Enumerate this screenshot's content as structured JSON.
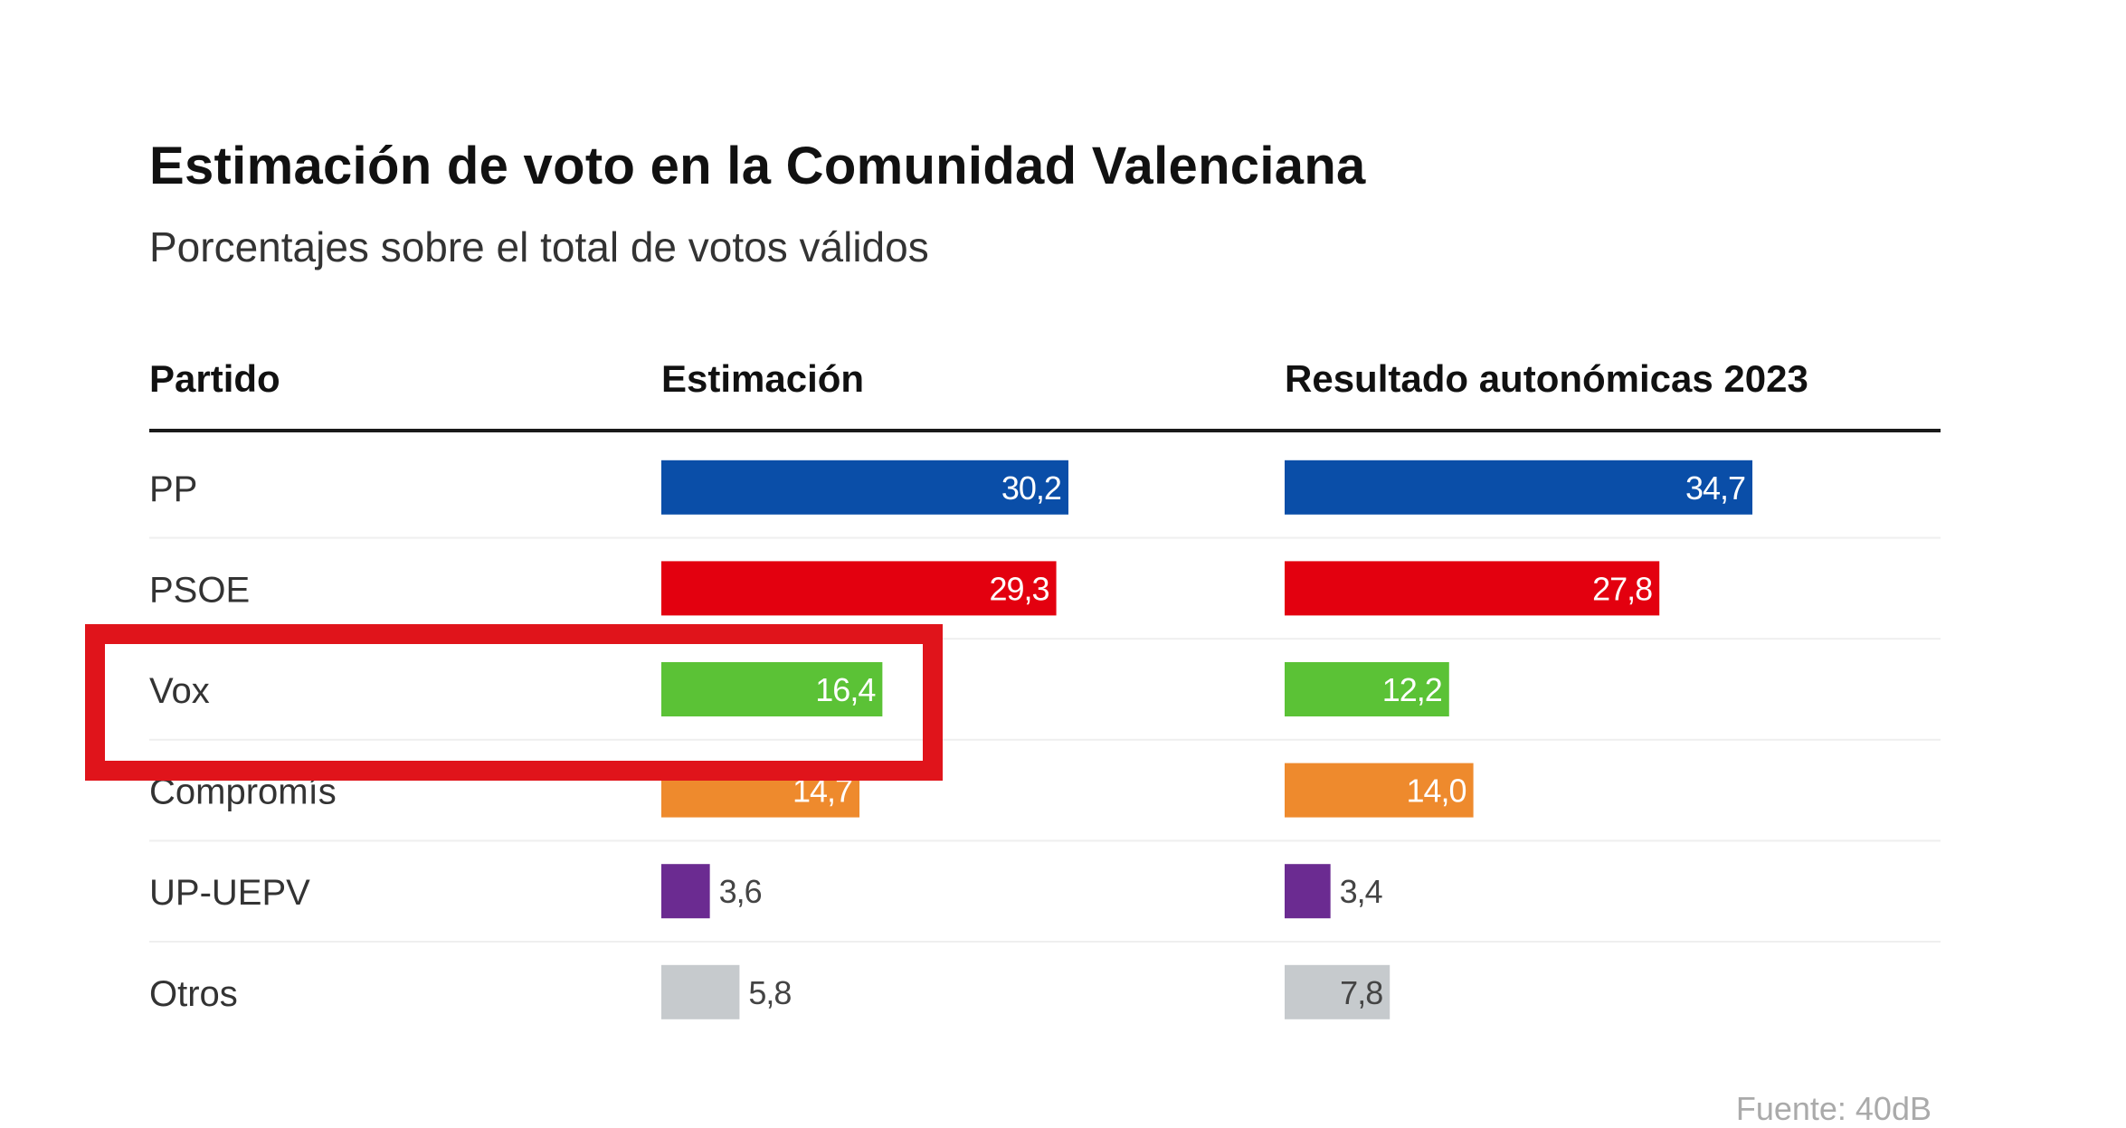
{
  "chart_data": {
    "type": "bar",
    "title": "Estimación de voto en la Comunidad Valenciana",
    "subtitle": "Porcentajes sobre el total de votos válidos",
    "column_headers": {
      "party": "Partido",
      "estimate": "Estimación",
      "result": "Resultado autonómicas 2023"
    },
    "categories": [
      "PP",
      "PSOE",
      "Vox",
      "Compromís",
      "UP-UEPV",
      "Otros"
    ],
    "series": [
      {
        "name": "Estimación",
        "values": [
          30.2,
          29.3,
          16.4,
          14.7,
          3.6,
          5.8
        ],
        "labels": [
          "30,2",
          "29,3",
          "16,4",
          "14,7",
          "3,6",
          "5,8"
        ]
      },
      {
        "name": "Resultado autonómicas 2023",
        "values": [
          34.7,
          27.8,
          12.2,
          14.0,
          3.4,
          7.8
        ],
        "labels": [
          "34,7",
          "27,8",
          "12,2",
          "14,0",
          "3,4",
          "7,8"
        ]
      }
    ],
    "colors": [
      "#0a4ea8",
      "#e3000f",
      "#5bc236",
      "#ee8a2d",
      "#6b2b91",
      "#c6cacd"
    ],
    "label_colors": [
      "#ffffff",
      "#ffffff",
      "#ffffff",
      "#ffffff",
      "#444444",
      "#444444"
    ],
    "highlighted_category": "Vox",
    "highlight_color": "#e0141b",
    "source": "Fuente: 40dB"
  }
}
